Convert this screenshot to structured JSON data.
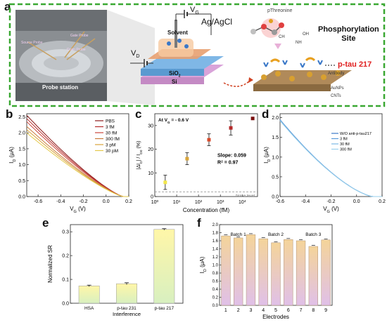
{
  "panel_a": {
    "letter": "a",
    "photo_label": "Probe station",
    "photo_tags": [
      "Source Probe",
      "Gate Probe",
      "Drain Probe"
    ],
    "vg_label": "V",
    "vg_sub": "G",
    "vd_label": "V",
    "vd_sub": "D",
    "electrode_label": "Ag/AgCl",
    "solvent_label": "Solvent",
    "sio2_label": "SiO",
    "sio2_sub": "2",
    "si_label": "Si",
    "molecule_label": "pThreonine",
    "phospho_line1": "Phosphorylation",
    "phospho_line2": "Site",
    "ptau_label": "p-tau 217",
    "antibody_label": "Antibody",
    "aunps_label": "AuNPs",
    "cnts_label": "CNTs"
  },
  "colors": {
    "dashed_border": "#3aa832",
    "ptau_red": "#e02020",
    "si_layer": "#d9a3d9",
    "sio2_layer": "#7fb7e6",
    "electrode": "#e8a070"
  },
  "chart_data": [
    {
      "panel": "b",
      "type": "line",
      "xlabel": "V",
      "xlabel_sub": "G",
      "xlabel_unit": " (V)",
      "ylabel": "I",
      "ylabel_sub": "D",
      "ylabel_unit": " (μA)",
      "xlim": [
        -0.7,
        0.2
      ],
      "ylim": [
        0,
        2.6
      ],
      "xticks": [
        "-0.6",
        "-0.4",
        "-0.2",
        "0.0",
        "0.2"
      ],
      "yticks": [
        "0.0",
        "0.5",
        "1.0",
        "1.5",
        "2.0",
        "2.5"
      ],
      "legend_position": "top-right",
      "series": [
        {
          "name": "PBS",
          "color": "#8b1a1a",
          "start": 2.55
        },
        {
          "name": "3 fM",
          "color": "#b52a2a",
          "start": 2.45
        },
        {
          "name": "30 fM",
          "color": "#c9463c",
          "start": 2.35
        },
        {
          "name": "300 fM",
          "color": "#c97a3a",
          "start": 2.2
        },
        {
          "name": "3 pM",
          "color": "#d8a23a",
          "start": 2.1
        },
        {
          "name": "30 pM",
          "color": "#e4c84a",
          "start": 2.0
        }
      ]
    },
    {
      "panel": "c",
      "type": "scatter",
      "title": "At V",
      "title_sub": "G",
      "title_rest": " = - 0.6 V",
      "xlabel": "Concentration (fM)",
      "ylabel": "|ΔI",
      "ylabel_sub": "D",
      "ylabel_mid": "| / I",
      "ylabel_sub2": "D0",
      "ylabel_unit": " (%)",
      "xscale": "log",
      "xlim": [
        1,
        50000
      ],
      "ylim": [
        0,
        35
      ],
      "xticks": [
        "10",
        "10",
        "10",
        "10",
        "10"
      ],
      "xtick_exps": [
        "0",
        "1",
        "2",
        "3",
        "4"
      ],
      "yticks": [
        "0",
        "10",
        "20",
        "30"
      ],
      "points": [
        {
          "x": 3,
          "y": 6,
          "err": 3,
          "color": "#f2e64a"
        },
        {
          "x": 30,
          "y": 16,
          "err": 2.5,
          "color": "#d9a53a"
        },
        {
          "x": 300,
          "y": 24,
          "err": 2.5,
          "color": "#d84a2a"
        },
        {
          "x": 3000,
          "y": 29,
          "err": 3,
          "color": "#b52a2a"
        },
        {
          "x": 30000,
          "y": 33,
          "err": 0,
          "color": "#7a1010"
        }
      ],
      "slope_text": "Slope: 0.059",
      "r2_text": "R",
      "r2_sup": "2",
      "r2_rest": " = 0.97",
      "noise_text": "Noise level",
      "noise_y": 2
    },
    {
      "panel": "d",
      "type": "line",
      "xlabel": "V",
      "xlabel_sub": "G",
      "xlabel_unit": " (V)",
      "ylabel": "I",
      "ylabel_sub": "D",
      "ylabel_unit": " (μA)",
      "xlim": [
        -0.6,
        0.2
      ],
      "ylim": [
        0,
        2.1
      ],
      "xticks": [
        "-0.6",
        "-0.4",
        "-0.2",
        "0.0",
        "0.2"
      ],
      "yticks": [
        "0.0",
        "0.5",
        "1.0",
        "1.5",
        "2.0"
      ],
      "legend_position": "top-right",
      "series": [
        {
          "name": "W/O anti-p-tau217",
          "color": "#3a78c8"
        },
        {
          "name": "3 fM",
          "color": "#5a9ad8"
        },
        {
          "name": "30 fM",
          "color": "#7ab8e4"
        },
        {
          "name": "300 fM",
          "color": "#9ad0ec"
        }
      ]
    },
    {
      "panel": "e",
      "type": "bar",
      "categories": [
        "HSA",
        "p-tau 231",
        "p-tau 217"
      ],
      "values": [
        0.073,
        0.082,
        0.31
      ],
      "errors": [
        0.003,
        0.004,
        0.003
      ],
      "ylabel": "Normalized SR",
      "xlabel": "Interference",
      "ylim": [
        0,
        0.33
      ],
      "yticks": [
        "0.0",
        "0.1",
        "0.2",
        "0.3"
      ]
    },
    {
      "panel": "f",
      "type": "bar",
      "categories": [
        "1",
        "2",
        "3",
        "4",
        "5",
        "6",
        "7",
        "8",
        "9"
      ],
      "values": [
        1.72,
        1.67,
        1.75,
        1.65,
        1.55,
        1.63,
        1.6,
        1.46,
        1.62
      ],
      "ylabel": "I",
      "ylabel_sub": "D",
      "ylabel_unit": " (μA)",
      "xlabel": "Electrodes",
      "ylim": [
        0,
        2.0
      ],
      "yticks": [
        "0.0",
        "0.2",
        "0.4",
        "0.6",
        "0.8",
        "1.0",
        "1.2",
        "1.4",
        "1.6",
        "1.8",
        "2.0"
      ],
      "groups": [
        {
          "name": "Batch 1",
          "members": [
            1,
            2,
            3
          ]
        },
        {
          "name": "Batch 2",
          "members": [
            4,
            5,
            6
          ]
        },
        {
          "name": "Batch 3",
          "members": [
            7,
            8,
            9
          ]
        }
      ]
    }
  ],
  "panel_letters": {
    "b": "b",
    "c": "c",
    "d": "d",
    "e": "e",
    "f": "f"
  }
}
